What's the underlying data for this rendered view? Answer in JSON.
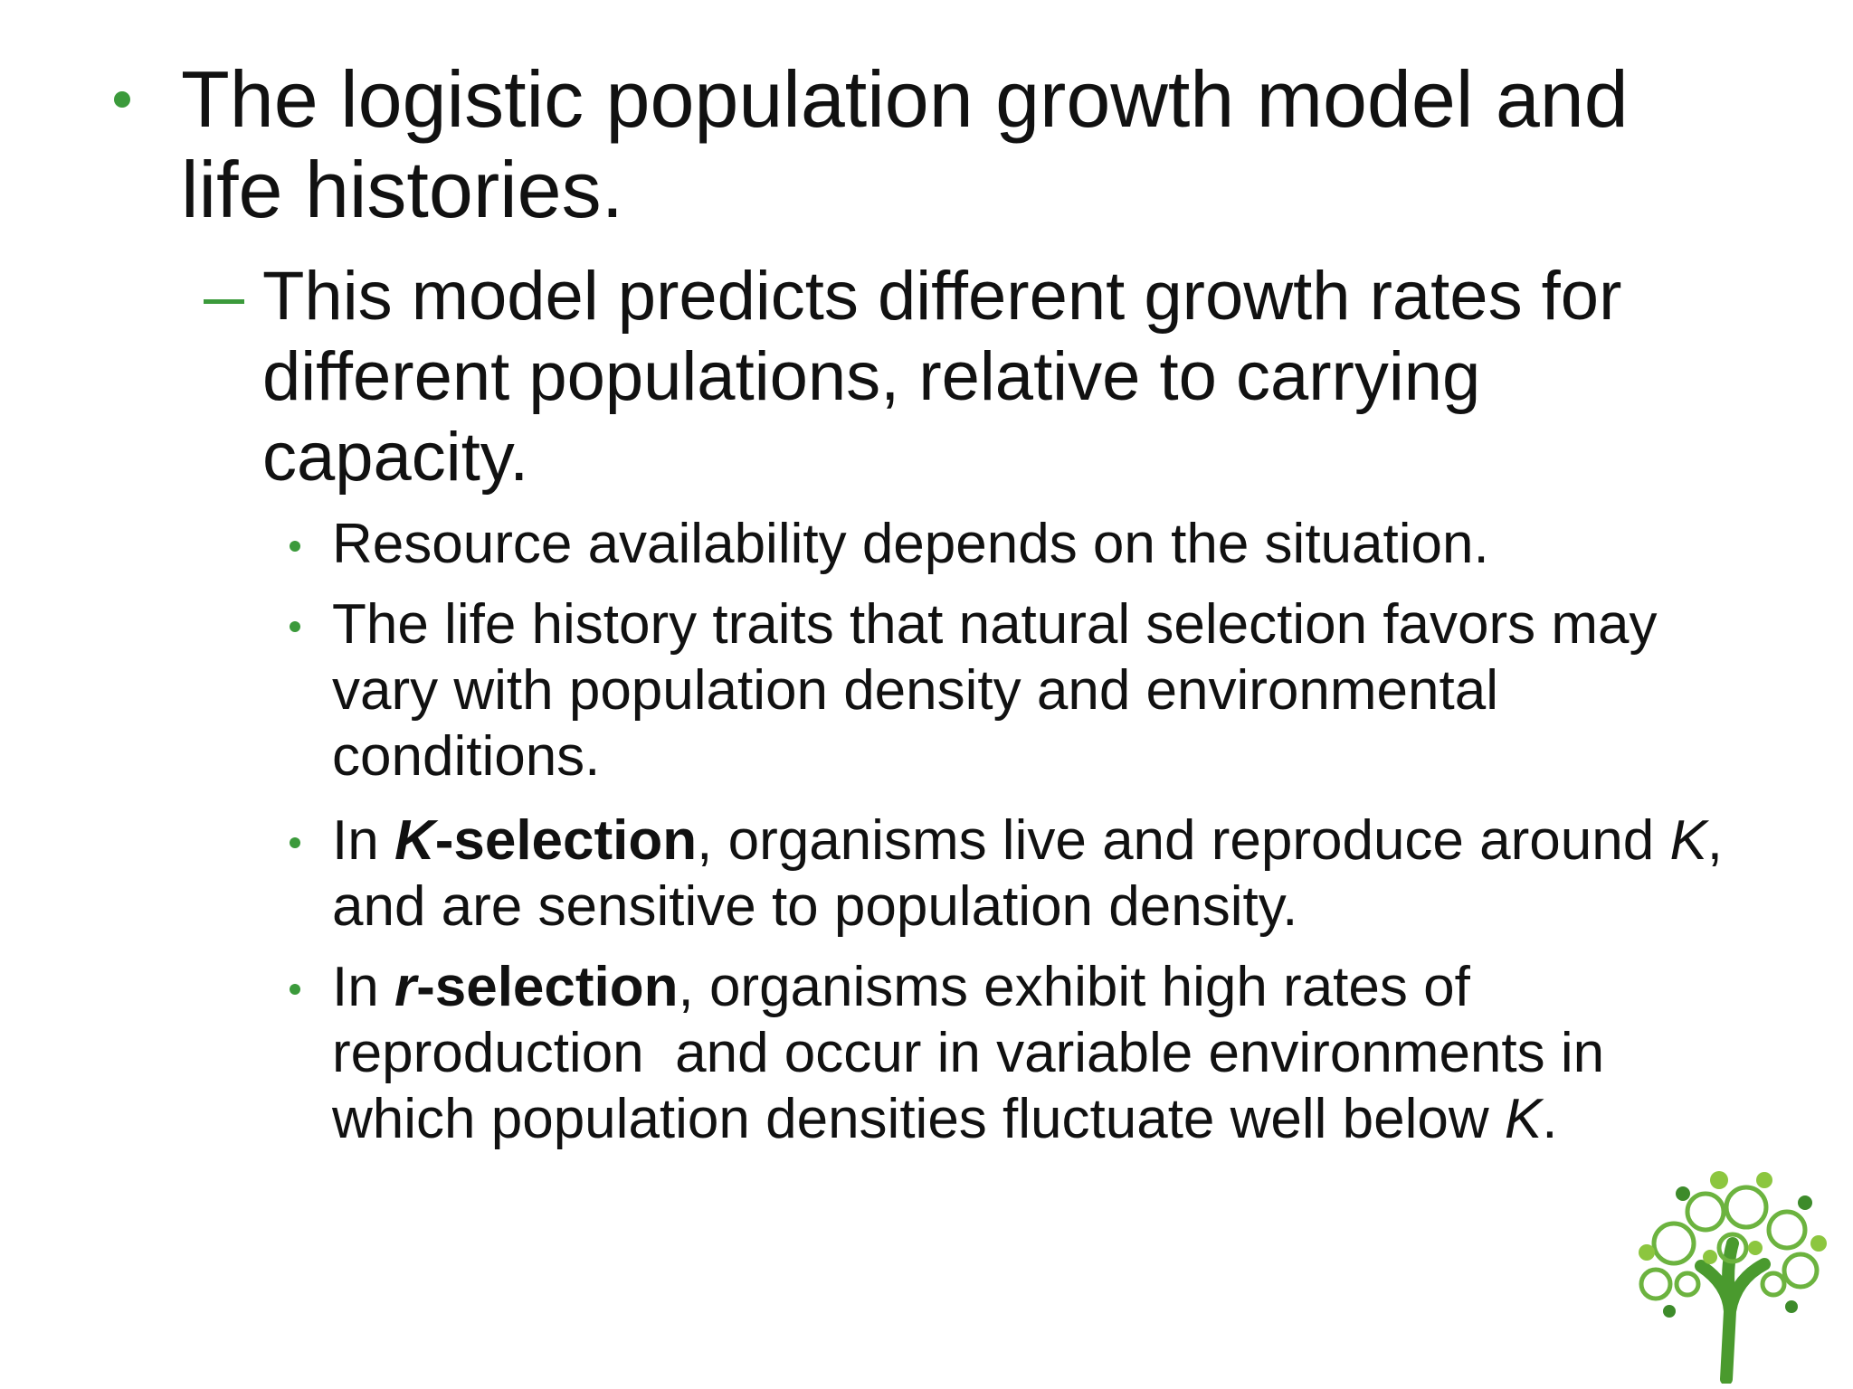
{
  "slide": {
    "bullets": [
      {
        "text": "The logistic population growth model and life histories.",
        "sub": [
          {
            "text": "This model predicts different growth rates for different populations, relative to carrying capacity.",
            "sub": [
              {
                "runs": [
                  "Resource availability depends on the situation."
                ]
              },
              {
                "runs": [
                  "The life history traits that natural selection favors may vary with population density and environmental conditions."
                ]
              },
              {
                "runs": [
                  "In ",
                  "K",
                  "-selection",
                  ", organisms live and reproduce around ",
                  "K",
                  ", and are sensitive to population density."
                ]
              },
              {
                "runs": [
                  "In ",
                  "r",
                  "-selection",
                  ", organisms exhibit high rates of reproduction  and occur in variable environments in which population densities fluctuate well below ",
                  "K",
                  "."
                ]
              }
            ]
          }
        ]
      }
    ]
  }
}
